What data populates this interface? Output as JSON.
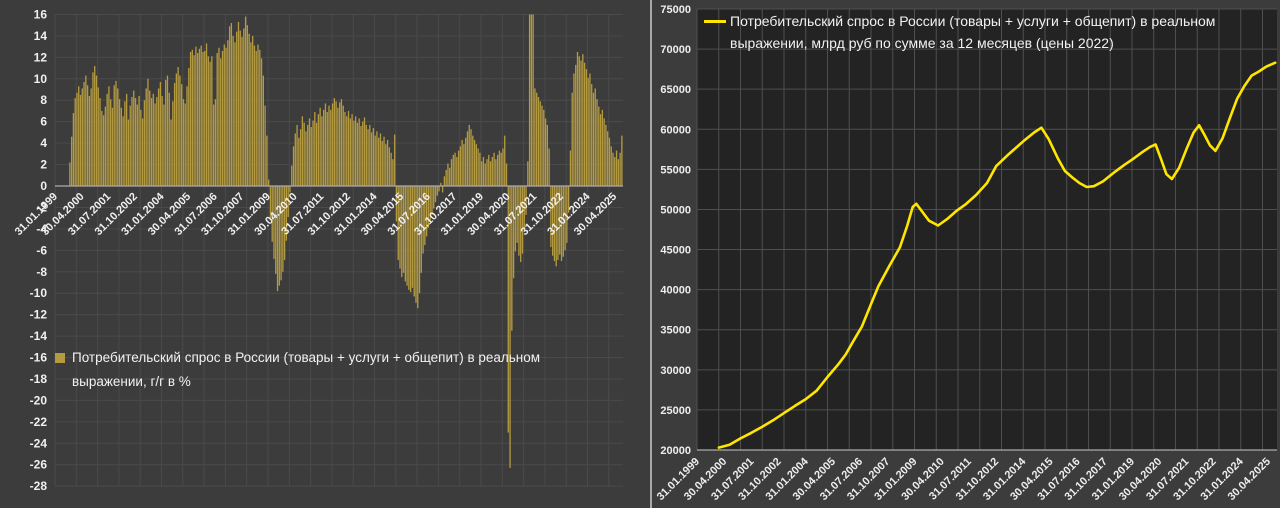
{
  "page": {
    "background": "#3c3c3c",
    "divider_color": "#a9a9a9",
    "text_color": "#f2f2f2"
  },
  "chart_data": [
    {
      "type": "bar",
      "legend_line1": "Потребительский спрос в России (товары + услуги + общепит) в реальном",
      "legend_line2": "выражении, г/г в %",
      "bar_color": "#b59b40",
      "grid_color": "#4a4a4a",
      "axis_line_color": "#ababab",
      "label_color": "#f0f0f0",
      "ylim": [
        -28,
        16
      ],
      "ytick_step": 2,
      "start_month": "1999-01",
      "months_total": 320,
      "label_every_months": 15,
      "gridline_every_months": 12,
      "x_labels": [
        "31.01.1999",
        "30.04.2000",
        "31.07.2001",
        "31.10.2002",
        "31.01.2004",
        "30.04.2005",
        "31.07.2006",
        "31.10.2007",
        "31.01.2009",
        "30.04.2010",
        "31.07.2011",
        "31.10.2012",
        "31.01.2014",
        "30.04.2015",
        "31.07.2016",
        "31.10.2017",
        "31.01.2019",
        "30.04.2020",
        "31.07.2021",
        "31.10.2022",
        "31.01.2024",
        "30.04.2025"
      ],
      "values_monthly": [
        null,
        null,
        null,
        null,
        null,
        null,
        null,
        null,
        2.2,
        4.6,
        6.8,
        8.2,
        8.7,
        9.3,
        8.5,
        9.1,
        9.7,
        10.3,
        9.4,
        8.4,
        9.1,
        10.6,
        11.2,
        10.3,
        9.2,
        8.2,
        7.0,
        6.6,
        7.4,
        8.6,
        9.3,
        8.1,
        7.3,
        9.4,
        9.8,
        9.1,
        8.1,
        7.3,
        6.5,
        7.9,
        8.6,
        6.2,
        7.5,
        8.3,
        8.9,
        8.2,
        7.6,
        8.4,
        7.1,
        6.3,
        8.0,
        9.1,
        10.0,
        8.9,
        8.2,
        8.6,
        7.7,
        8.3,
        9.1,
        9.7,
        8.4,
        7.6,
        9.9,
        10.3,
        8.7,
        6.2,
        7.9,
        9.6,
        10.5,
        11.1,
        10.3,
        9.5,
        8.1,
        7.7,
        9.3,
        11.0,
        12.5,
        12.7,
        12.2,
        13.0,
        12.4,
        12.8,
        13.1,
        12.5,
        12.6,
        13.3,
        12.1,
        11.6,
        12.1,
        7.6,
        8.1,
        12.4,
        12.9,
        11.9,
        12.6,
        13.2,
        12.9,
        13.6,
        14.9,
        15.2,
        14.0,
        13.4,
        14.4,
        15.3,
        14.5,
        13.9,
        14.7,
        15.8,
        15.0,
        14.2,
        13.4,
        14.0,
        13.1,
        12.6,
        13.2,
        12.7,
        11.9,
        10.3,
        7.5,
        4.7,
        0.6,
        -3.0,
        -5.2,
        -6.8,
        -8.2,
        -9.8,
        -9.3,
        -8.8,
        -8.0,
        -6.9,
        -5.1,
        -2.9,
        -0.6,
        1.9,
        3.7,
        4.9,
        5.7,
        4.5,
        5.3,
        6.5,
        5.9,
        5.1,
        5.7,
        6.3,
        5.5,
        6.1,
        6.9,
        5.9,
        6.7,
        7.3,
        6.5,
        7.1,
        7.7,
        6.9,
        7.5,
        7.1,
        7.7,
        8.2,
        7.9,
        7.3,
        7.8,
        8.1,
        7.5,
        6.9,
        6.5,
        7.0,
        6.3,
        6.7,
        6.1,
        6.5,
        5.9,
        6.3,
        5.6,
        6.0,
        6.4,
        5.7,
        5.3,
        5.7,
        5.0,
        5.4,
        4.7,
        5.1,
        4.5,
        4.9,
        4.2,
        4.6,
        3.9,
        4.3,
        3.6,
        3.1,
        2.5,
        4.8,
        -3.3,
        -6.9,
        -7.7,
        -8.5,
        -8.1,
        -8.9,
        -9.3,
        -9.7,
        -9.9,
        -9.5,
        -10.3,
        -10.9,
        -11.4,
        -10.0,
        -8.1,
        -6.3,
        -5.5,
        -4.7,
        -3.9,
        -3.3,
        -2.7,
        -2.1,
        -1.5,
        -0.9,
        -0.5,
        0.3,
        -0.6,
        0.9,
        1.5,
        2.1,
        1.7,
        2.5,
        2.9,
        3.1,
        2.7,
        3.3,
        3.7,
        4.3,
        3.9,
        4.5,
        5.1,
        5.7,
        5.3,
        4.7,
        4.3,
        3.9,
        3.5,
        3.1,
        2.3,
        2.7,
        2.1,
        2.5,
        2.9,
        2.3,
        2.7,
        3.1,
        2.5,
        2.9,
        3.3,
        3.1,
        3.5,
        4.7,
        2.1,
        -23.0,
        -26.3,
        -13.5,
        -8.6,
        -6.1,
        -5.3,
        -6.5,
        -7.1,
        -6.3,
        -4.1,
        -2.7,
        2.3,
        30.0,
        26.0,
        16.4,
        9.1,
        8.7,
        8.3,
        7.9,
        7.5,
        7.1,
        6.3,
        5.7,
        3.5,
        -5.7,
        -6.5,
        -7.0,
        -7.5,
        -6.9,
        -6.4,
        -7.0,
        -6.6,
        -6.0,
        -5.3,
        -2.5,
        3.3,
        8.7,
        10.5,
        11.3,
        12.5,
        12.1,
        11.7,
        12.3,
        11.5,
        10.9,
        10.1,
        10.5,
        9.5,
        8.7,
        9.1,
        8.1,
        7.4,
        6.7,
        7.1,
        6.3,
        5.7,
        5.1,
        4.5,
        3.7,
        3.1,
        2.7,
        3.3,
        2.5,
        3.1,
        4.7
      ]
    },
    {
      "type": "line",
      "legend_line1": "Потребительский спрос в России (товары + услуги + общепит) в реальном",
      "legend_line2": "выражении, млрд руб по сумме за 12 месяцев (цены 2022)",
      "line_color": "#ffe600",
      "plot_bg": "#232323",
      "grid_color": "#4f4f4f",
      "axis_line_color": "#ababab",
      "label_color": "#eeeeee",
      "ylim": [
        20000,
        75000
      ],
      "ytick_step": 5000,
      "start_month": "1999-01",
      "months_total": 320,
      "label_every_months": 15,
      "gridline_every_months": 12,
      "x_labels": [
        "31.01.1999",
        "30.04.2000",
        "31.07.2001",
        "31.10.2002",
        "31.01.2004",
        "30.04.2005",
        "31.07.2006",
        "31.10.2007",
        "31.01.2009",
        "30.04.2010",
        "31.07.2011",
        "31.10.2012",
        "31.01.2014",
        "30.04.2015",
        "31.07.2016",
        "31.10.2017",
        "31.01.2019",
        "30.04.2020",
        "31.07.2021",
        "31.10.2022",
        "31.01.2024",
        "30.04.2025"
      ],
      "points": [
        [
          12,
          20300
        ],
        [
          18,
          20650
        ],
        [
          24,
          21450
        ],
        [
          30,
          22150
        ],
        [
          36,
          22900
        ],
        [
          42,
          23700
        ],
        [
          48,
          24600
        ],
        [
          54,
          25500
        ],
        [
          60,
          26350
        ],
        [
          66,
          27400
        ],
        [
          72,
          29100
        ],
        [
          78,
          30700
        ],
        [
          82,
          31900
        ],
        [
          86,
          33500
        ],
        [
          91,
          35400
        ],
        [
          96,
          38200
        ],
        [
          100,
          40400
        ],
        [
          106,
          42900
        ],
        [
          112,
          45300
        ],
        [
          116,
          48000
        ],
        [
          119,
          50300
        ],
        [
          121,
          50700
        ],
        [
          124,
          49800
        ],
        [
          128,
          48600
        ],
        [
          133,
          48000
        ],
        [
          138,
          48800
        ],
        [
          143,
          49800
        ],
        [
          148,
          50600
        ],
        [
          154,
          51800
        ],
        [
          160,
          53300
        ],
        [
          165,
          55400
        ],
        [
          172,
          56900
        ],
        [
          180,
          58500
        ],
        [
          186,
          59600
        ],
        [
          190,
          60200
        ],
        [
          194,
          58800
        ],
        [
          199,
          56400
        ],
        [
          203,
          54800
        ],
        [
          207,
          54000
        ],
        [
          211,
          53300
        ],
        [
          215,
          52800
        ],
        [
          219,
          52900
        ],
        [
          224,
          53500
        ],
        [
          230,
          54600
        ],
        [
          236,
          55600
        ],
        [
          240,
          56200
        ],
        [
          246,
          57200
        ],
        [
          250,
          57800
        ],
        [
          253,
          58100
        ],
        [
          256,
          56300
        ],
        [
          259,
          54400
        ],
        [
          262,
          53800
        ],
        [
          266,
          55200
        ],
        [
          270,
          57500
        ],
        [
          274,
          59600
        ],
        [
          277,
          60500
        ],
        [
          280,
          59300
        ],
        [
          283,
          58000
        ],
        [
          286,
          57300
        ],
        [
          290,
          58900
        ],
        [
          294,
          61400
        ],
        [
          298,
          63800
        ],
        [
          302,
          65400
        ],
        [
          306,
          66700
        ],
        [
          310,
          67200
        ],
        [
          314,
          67800
        ],
        [
          319,
          68300
        ]
      ]
    }
  ]
}
